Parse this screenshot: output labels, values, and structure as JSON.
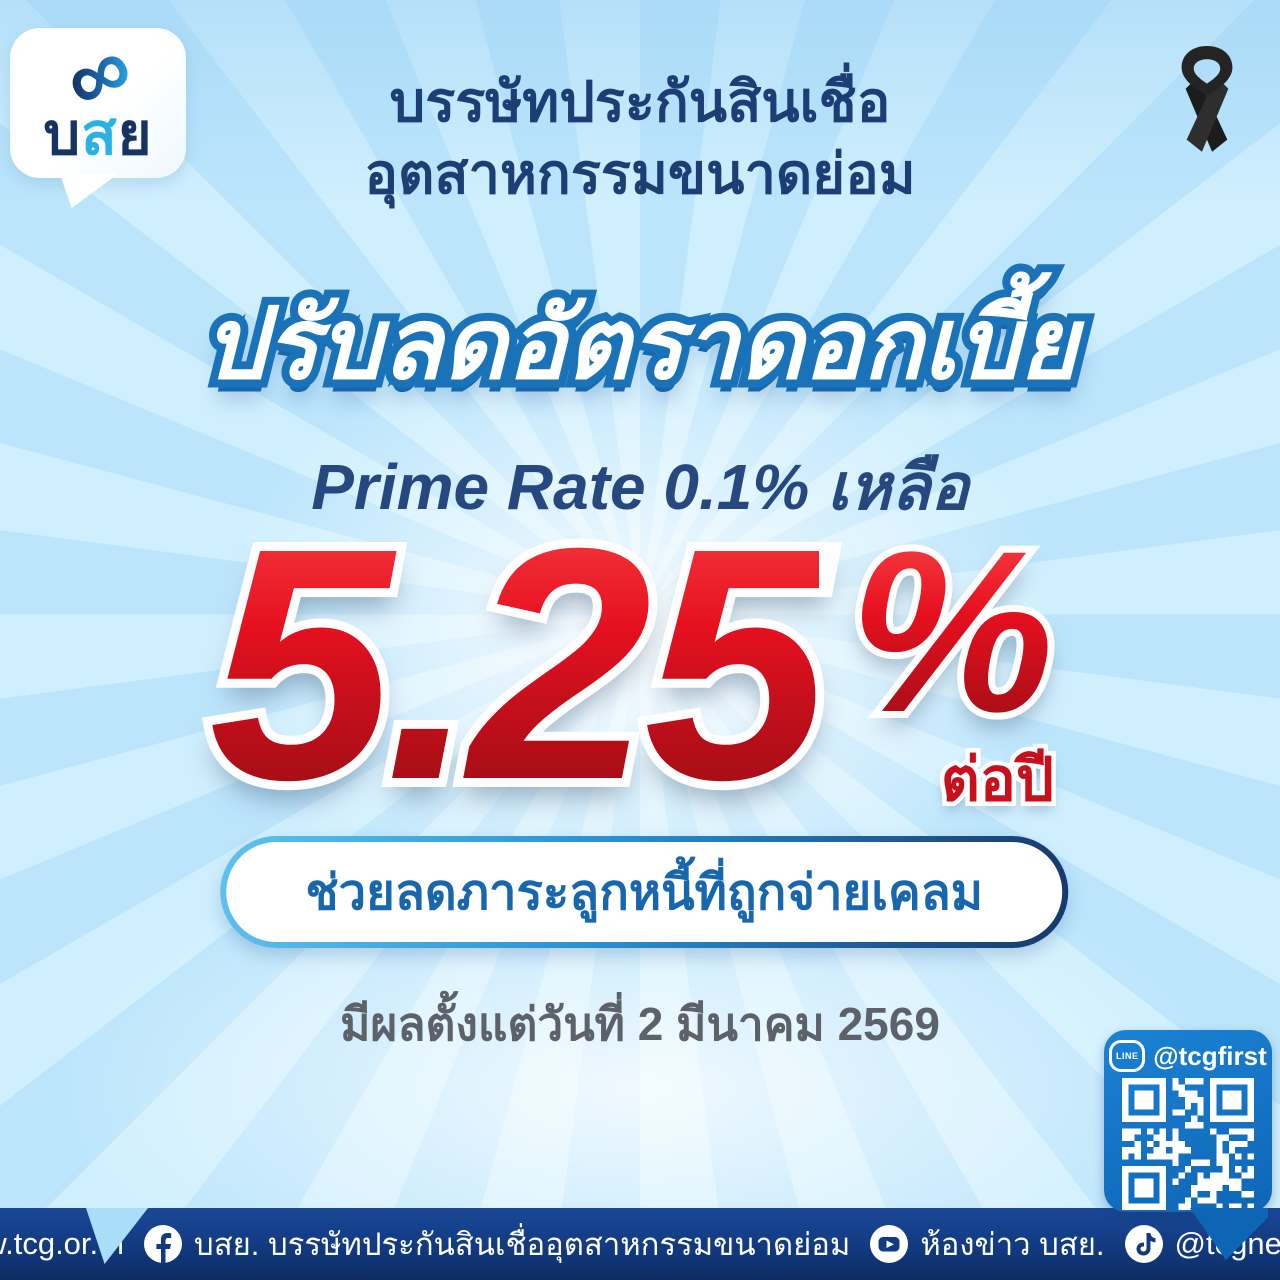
{
  "logo": {
    "char1": "บ",
    "char2": "ส",
    "char3": "ย",
    "infinity_icon": "∞"
  },
  "header": {
    "line1": "บรรษัทประกันสินเชื่อ",
    "line2": "อุตสาหกรรมขนาดย่อม"
  },
  "headline": "ปรับลดอัตราดอกเบี้ย",
  "subheadline": "Prime Rate 0.1% เหลือ",
  "rate": {
    "value": "5.25",
    "percent_sign": "%",
    "per_unit": "ต่อปี"
  },
  "benefit": "ช่วยลดภาระลูกหนี้ที่ถูกจ่ายเคลม",
  "effective_date": "มีผลตั้งแต่วันที่ 2 มีนาคม 2569",
  "line_qr": {
    "badge": "LINE",
    "handle": "@tcgfirst"
  },
  "footer": {
    "website": "www.tcg.or.th",
    "facebook_name": "บสย. บรรษัทประกันสินเชื่ออุตสาหกรรมขนาดย่อม",
    "youtube_name": "ห้องข่าว บสย.",
    "tiktok_handle": "@tcgnewsroom"
  },
  "colors": {
    "accent_red": "#d8121f",
    "brand_navy": "#1d3e74",
    "headline_blue": "#1a72b8",
    "qr_bubble_blue": "#1173c9",
    "background_light_blue": "#b9e5fb",
    "footer_navy": "#123a80",
    "logo_cyan": "#29b2e6"
  }
}
